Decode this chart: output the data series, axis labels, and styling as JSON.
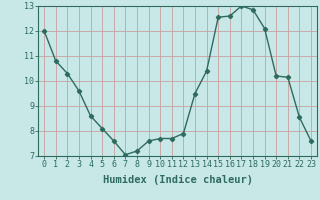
{
  "x": [
    0,
    1,
    2,
    3,
    4,
    5,
    6,
    7,
    8,
    9,
    10,
    11,
    12,
    13,
    14,
    15,
    16,
    17,
    18,
    19,
    20,
    21,
    22,
    23
  ],
  "y": [
    12.0,
    10.8,
    10.3,
    9.6,
    8.6,
    8.1,
    7.6,
    7.05,
    7.2,
    7.6,
    7.7,
    7.7,
    7.9,
    9.5,
    10.4,
    12.55,
    12.6,
    13.0,
    12.85,
    12.1,
    10.2,
    10.15,
    8.55,
    7.6
  ],
  "line_color": "#2e6b5e",
  "marker": "D",
  "marker_size": 2.2,
  "bg_color": "#c8e8e8",
  "grid_color": "#c8a0a0",
  "xlabel": "Humidex (Indice chaleur)",
  "xlabel_fontsize": 7.5,
  "ylim": [
    7,
    13
  ],
  "xlim": [
    -0.5,
    23.5
  ],
  "yticks": [
    7,
    8,
    9,
    10,
    11,
    12,
    13
  ],
  "xticks": [
    0,
    1,
    2,
    3,
    4,
    5,
    6,
    7,
    8,
    9,
    10,
    11,
    12,
    13,
    14,
    15,
    16,
    17,
    18,
    19,
    20,
    21,
    22,
    23
  ],
  "tick_label_fontsize": 6.0,
  "tick_color": "#2e6b5e",
  "spine_color": "#2e6b5e",
  "line_width": 1.0
}
